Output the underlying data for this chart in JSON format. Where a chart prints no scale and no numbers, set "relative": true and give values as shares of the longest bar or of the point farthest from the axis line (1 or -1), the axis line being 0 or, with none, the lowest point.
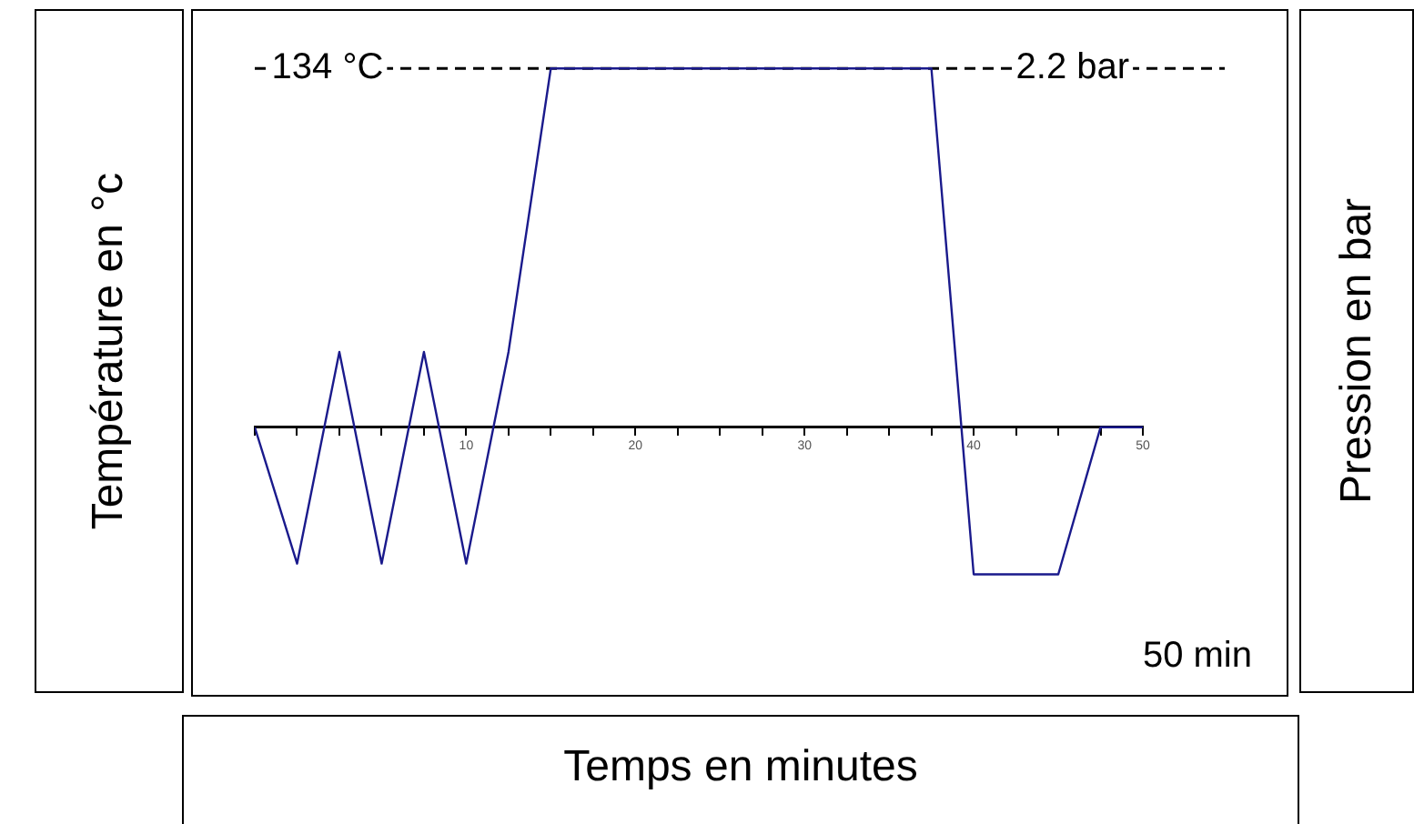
{
  "chart_data": {
    "type": "line",
    "relative": true,
    "xlabel": "Temps en minutes",
    "ylabel": "Température  en  °c",
    "y2label": "Pression  en bar",
    "x": [
      -2.5,
      0,
      2.5,
      5,
      7.5,
      10,
      12.5,
      15,
      37.5,
      40,
      45,
      47.5,
      50
    ],
    "series": [
      {
        "color": "#1a1a8c",
        "values": [
          0,
          -0.38,
          0.21,
          -0.38,
          0.21,
          -0.38,
          0.21,
          1,
          1,
          -0.41,
          -0.41,
          0,
          0
        ]
      }
    ],
    "xlim": [
      -2.5,
      50
    ],
    "xticks": [
      {
        "value": -2.5,
        "label": null
      },
      {
        "value": 0,
        "label": null
      },
      {
        "value": 2.5,
        "label": null
      },
      {
        "value": 5,
        "label": null
      },
      {
        "value": 7.5,
        "label": null
      },
      10,
      {
        "value": 12.5,
        "label": null
      },
      {
        "value": 15,
        "label": null
      },
      {
        "value": 17.5,
        "label": null
      },
      20,
      {
        "value": 22.5,
        "label": null
      },
      {
        "value": 25,
        "label": null
      },
      {
        "value": 27.5,
        "label": null
      },
      30,
      {
        "value": 32.5,
        "label": null
      },
      {
        "value": 35,
        "label": null
      },
      {
        "value": 37.5,
        "label": null
      },
      40,
      {
        "value": 42.5,
        "label": null
      },
      {
        "value": 45,
        "label": null
      },
      {
        "value": 47.5,
        "label": null
      },
      50
    ],
    "ref_lines": [
      {
        "axis": "y",
        "value": 1,
        "color": "#000000",
        "line_style": "dashed"
      }
    ],
    "annotations": [
      {
        "text": "134 °C",
        "x": -1.5,
        "y": 1
      },
      {
        "text": "2.2 bar",
        "x": 42.5,
        "y": 1
      },
      "50 min"
    ],
    "grid": false,
    "legend": false,
    "marker": "none",
    "line_style": "solid"
  }
}
